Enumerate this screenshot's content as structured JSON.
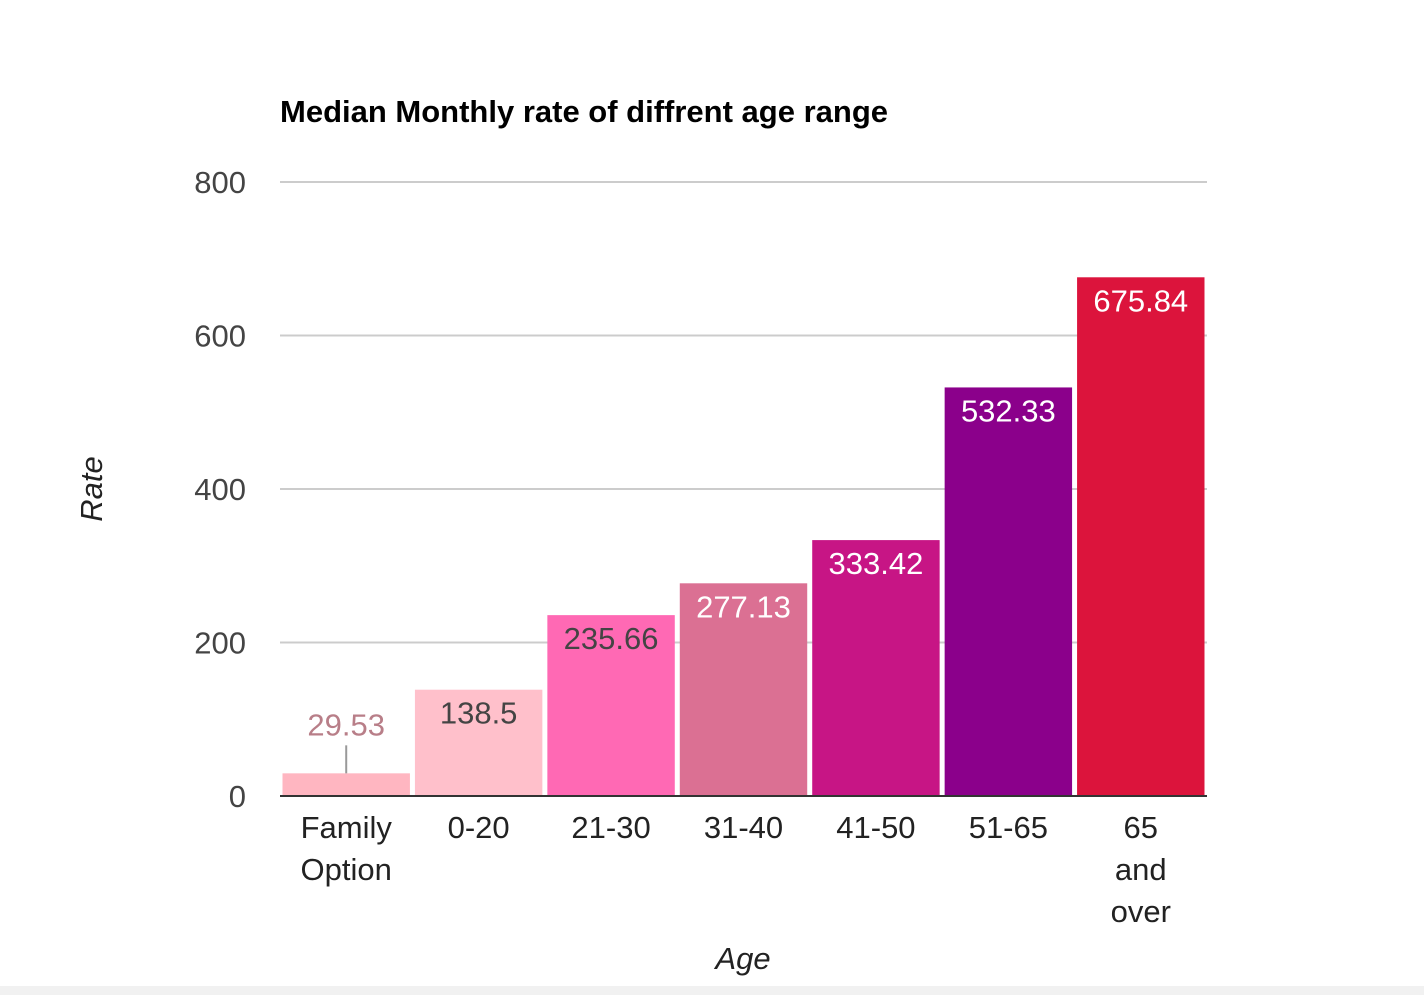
{
  "chart_data": {
    "type": "bar",
    "title": "Median Monthly rate of diffrent age range",
    "xlabel": "Age",
    "ylabel": "Rate",
    "categories": [
      [
        "Family",
        "Option"
      ],
      [
        "0-20"
      ],
      [
        "21-30"
      ],
      [
        "31-40"
      ],
      [
        "41-50"
      ],
      [
        "51-65"
      ],
      [
        "65",
        "and",
        "over"
      ]
    ],
    "values": [
      29.53,
      138.5,
      235.66,
      277.13,
      333.42,
      532.33,
      675.84
    ],
    "data_labels": [
      "29.53",
      "138.5",
      "235.66",
      "277.13",
      "333.42",
      "532.33",
      "675.84"
    ],
    "colors": [
      "#ffb6c1",
      "#ffc0cb",
      "#ff69b4",
      "#db7093",
      "#c71585",
      "#8b008b",
      "#dc143c"
    ],
    "label_colors": [
      "#b87e88",
      "#444444",
      "#444444",
      "#ffffff",
      "#ffffff",
      "#ffffff",
      "#ffffff"
    ],
    "ylim": [
      0,
      800
    ],
    "yticks": [
      0,
      200,
      400,
      600,
      800
    ],
    "grid": true,
    "legend": "none"
  }
}
